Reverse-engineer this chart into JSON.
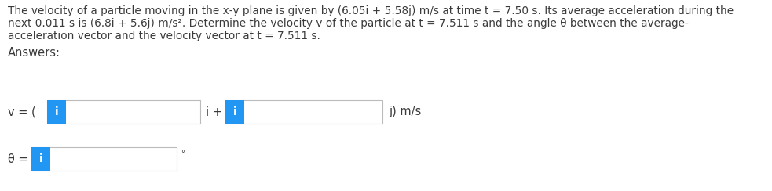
{
  "background_color": "#ffffff",
  "text_color": "#3a3a3a",
  "problem_text_line1": "The velocity of a particle moving in the x-y plane is given by (6.05i + 5.58j) m/s at time t = 7.50 s. Its average acceleration during the",
  "problem_text_line2": "next 0.011 s is (6.8i + 5.6j) m/s². Determine the velocity v of the particle at t = 7.511 s and the angle θ between the average-",
  "problem_text_line3": "acceleration vector and the velocity vector at t = 7.511 s.",
  "answers_label": "Answers:",
  "v_label": "v = (",
  "i_plus": "i +",
  "j_ms": "j) m/s",
  "theta_label": "θ =",
  "degree_symbol": "°",
  "box_fill": "#ffffff",
  "box_edge": "#bbbbbb",
  "blue_fill": "#2196f3",
  "blue_text": "i",
  "font_size_problem": 9.8,
  "font_size_answers": 10.5,
  "font_size_label": 10.5,
  "fig_width": 9.83,
  "fig_height": 2.44,
  "dpi": 100
}
